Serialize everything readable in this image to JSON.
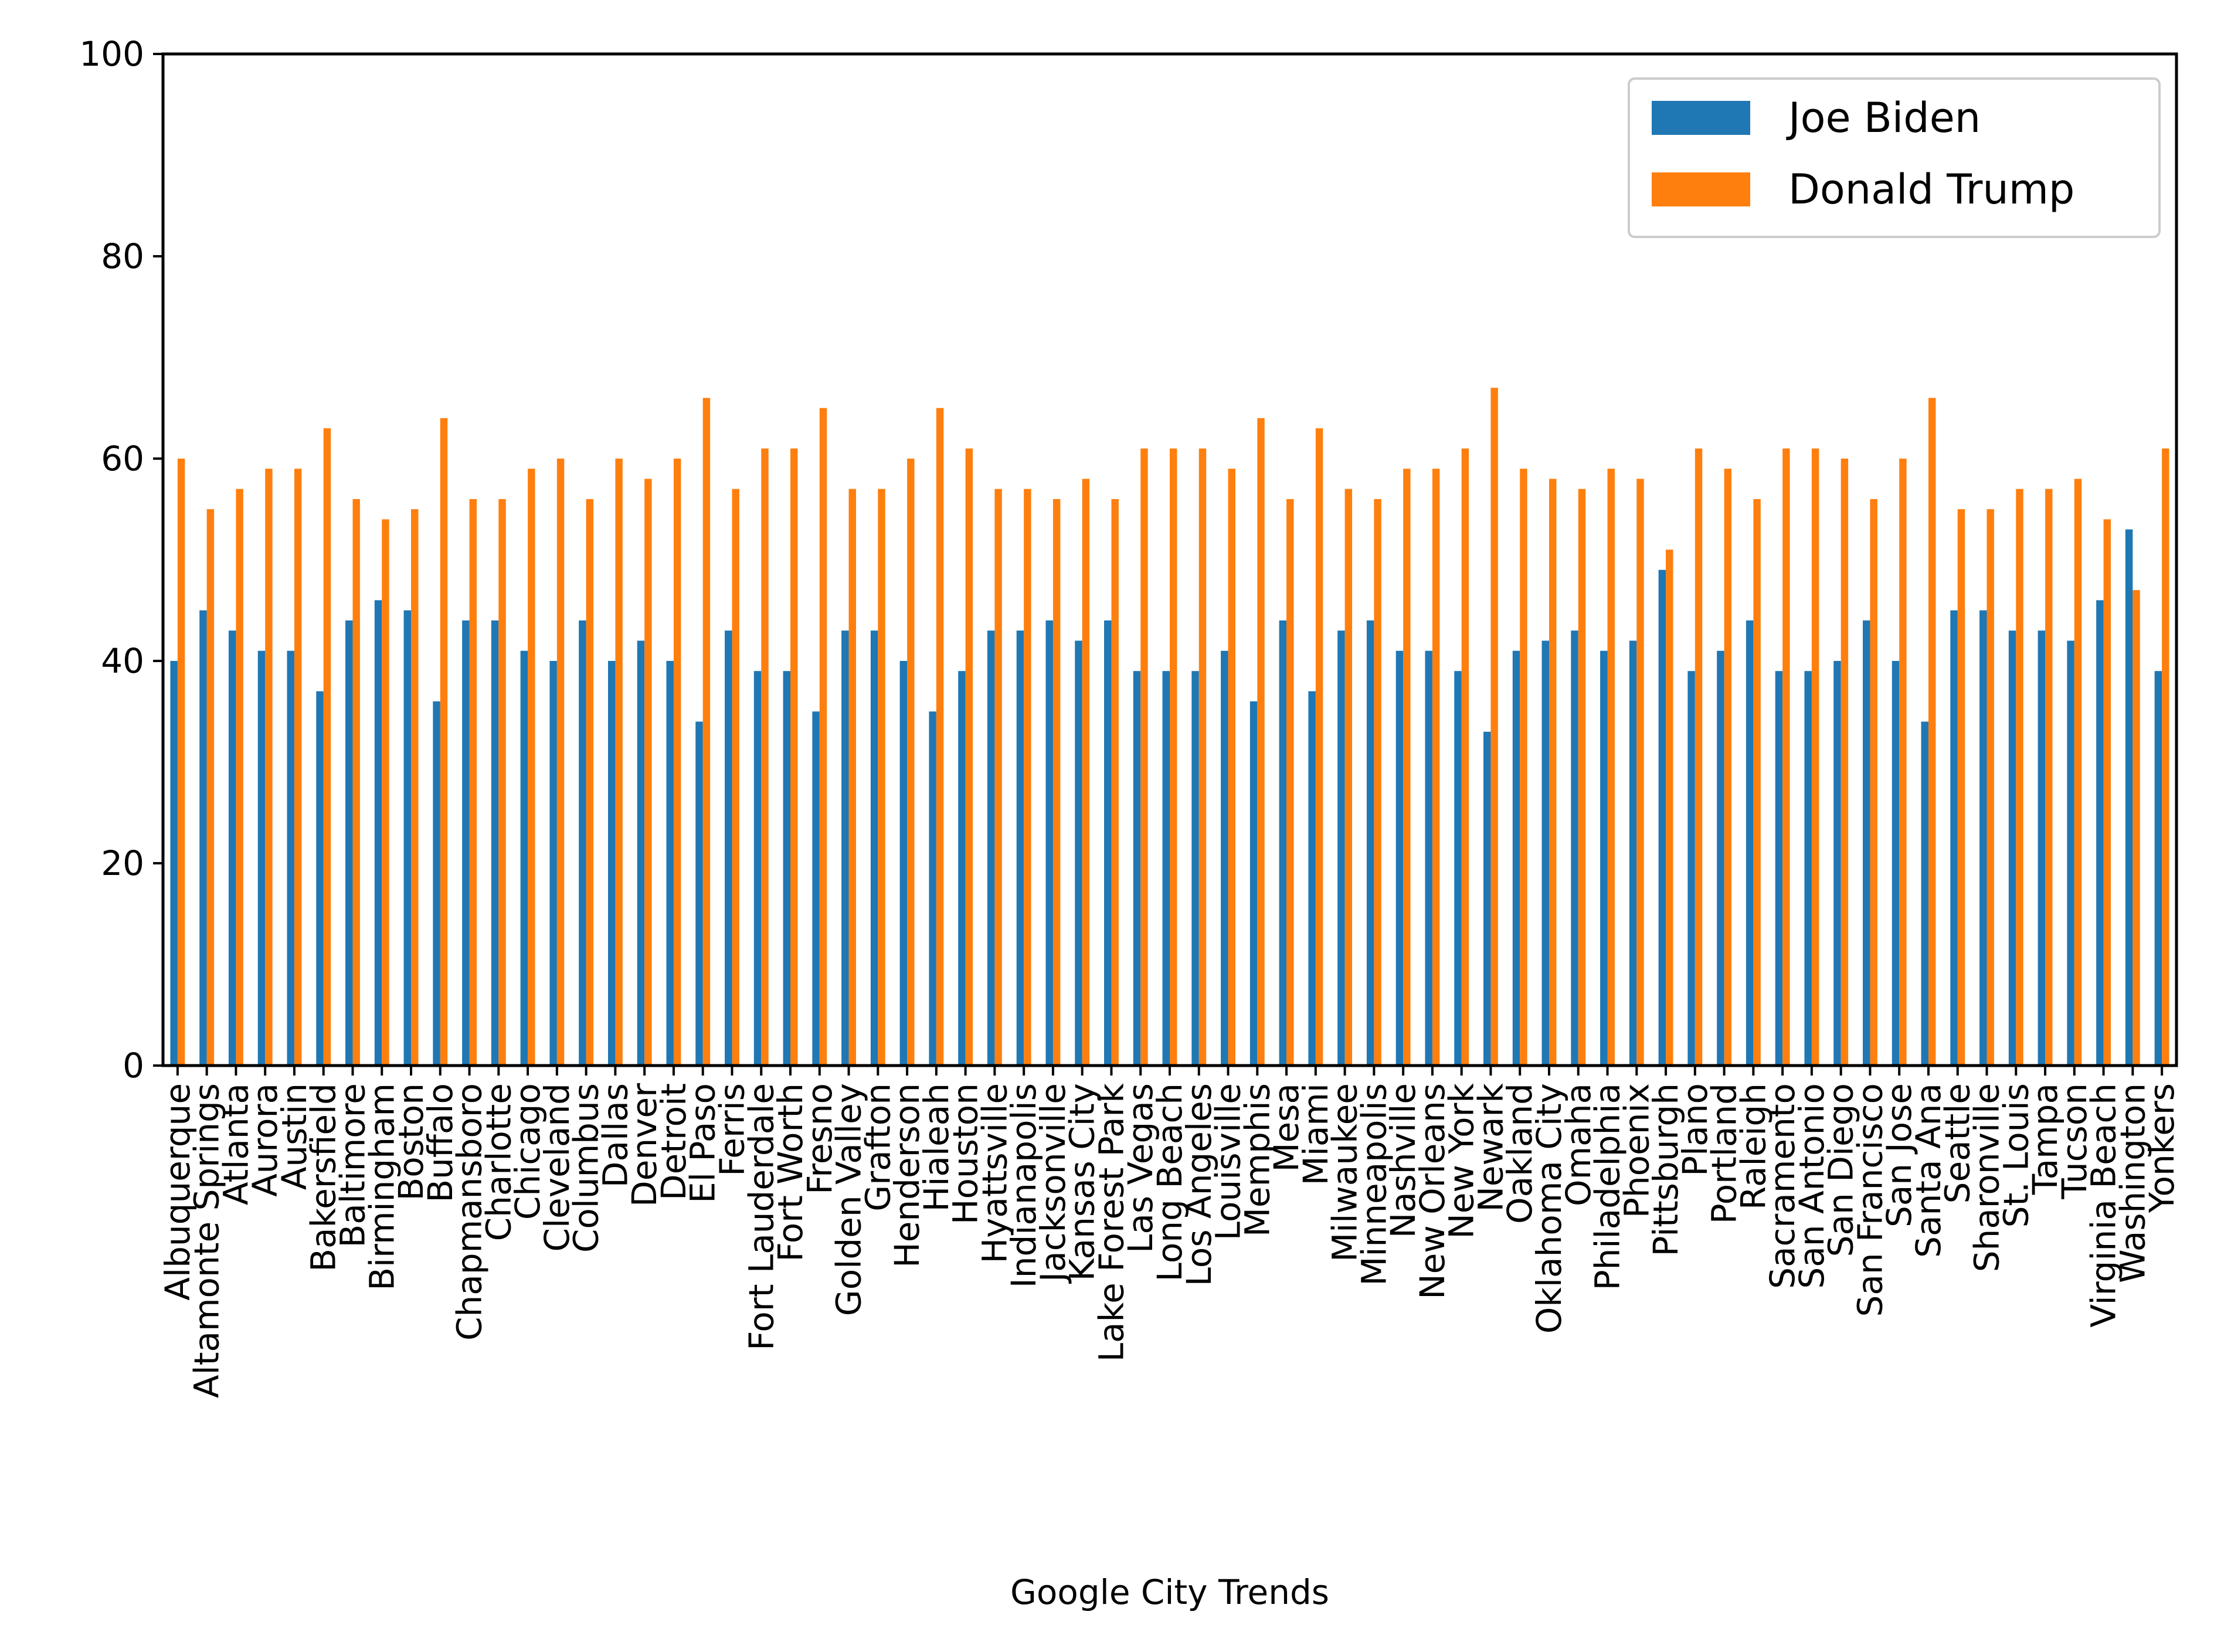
{
  "chart_data": {
    "type": "bar",
    "xlabel": "Google City Trends",
    "ylabel": "",
    "ylim": [
      0,
      100
    ],
    "yticks": [
      0,
      20,
      40,
      60,
      80,
      100
    ],
    "legend_position": "top-right",
    "grid": false,
    "categories": [
      "Albuquerque",
      "Altamonte Springs",
      "Atlanta",
      "Aurora",
      "Austin",
      "Bakersfield",
      "Baltimore",
      "Birmingham",
      "Boston",
      "Buffalo",
      "Chapmansboro",
      "Charlotte",
      "Chicago",
      "Cleveland",
      "Columbus",
      "Dallas",
      "Denver",
      "Detroit",
      "El Paso",
      "Ferris",
      "Fort Lauderdale",
      "Fort Worth",
      "Fresno",
      "Golden Valley",
      "Grafton",
      "Henderson",
      "Hialeah",
      "Houston",
      "Hyattsville",
      "Indianapolis",
      "Jacksonville",
      "Kansas City",
      "Lake Forest Park",
      "Las Vegas",
      "Long Beach",
      "Los Angeles",
      "Louisville",
      "Memphis",
      "Mesa",
      "Miami",
      "Milwaukee",
      "Minneapolis",
      "Nashville",
      "New Orleans",
      "New York",
      "Newark",
      "Oakland",
      "Oklahoma City",
      "Omaha",
      "Philadelphia",
      "Phoenix",
      "Pittsburgh",
      "Plano",
      "Portland",
      "Raleigh",
      "Sacramento",
      "San Antonio",
      "San Diego",
      "San Francisco",
      "San Jose",
      "Santa Ana",
      "Seattle",
      "Sharonville",
      "St. Louis",
      "Tampa",
      "Tucson",
      "Virginia Beach",
      "Washington",
      "Yonkers"
    ],
    "series": [
      {
        "name": "Joe Biden",
        "color": "#1f77b4",
        "values": [
          40,
          45,
          43,
          41,
          41,
          37,
          44,
          46,
          45,
          36,
          44,
          44,
          41,
          40,
          44,
          40,
          42,
          40,
          34,
          43,
          39,
          39,
          35,
          43,
          43,
          40,
          35,
          39,
          43,
          43,
          44,
          42,
          44,
          39,
          39,
          39,
          41,
          36,
          44,
          37,
          43,
          44,
          41,
          41,
          39,
          33,
          41,
          42,
          43,
          41,
          42,
          49,
          39,
          41,
          44,
          39,
          39,
          40,
          44,
          40,
          34,
          45,
          45,
          43,
          43,
          42,
          46,
          53,
          39
        ]
      },
      {
        "name": "Donald Trump",
        "color": "#ff7f0e",
        "values": [
          60,
          55,
          57,
          59,
          59,
          63,
          56,
          54,
          55,
          64,
          56,
          56,
          59,
          60,
          56,
          60,
          58,
          60,
          66,
          57,
          61,
          61,
          65,
          57,
          57,
          60,
          65,
          61,
          57,
          57,
          56,
          58,
          56,
          61,
          61,
          61,
          59,
          64,
          56,
          63,
          57,
          56,
          59,
          59,
          61,
          67,
          59,
          58,
          57,
          59,
          58,
          51,
          61,
          59,
          56,
          61,
          61,
          60,
          56,
          60,
          66,
          55,
          55,
          57,
          57,
          58,
          54,
          47,
          61
        ]
      }
    ]
  }
}
